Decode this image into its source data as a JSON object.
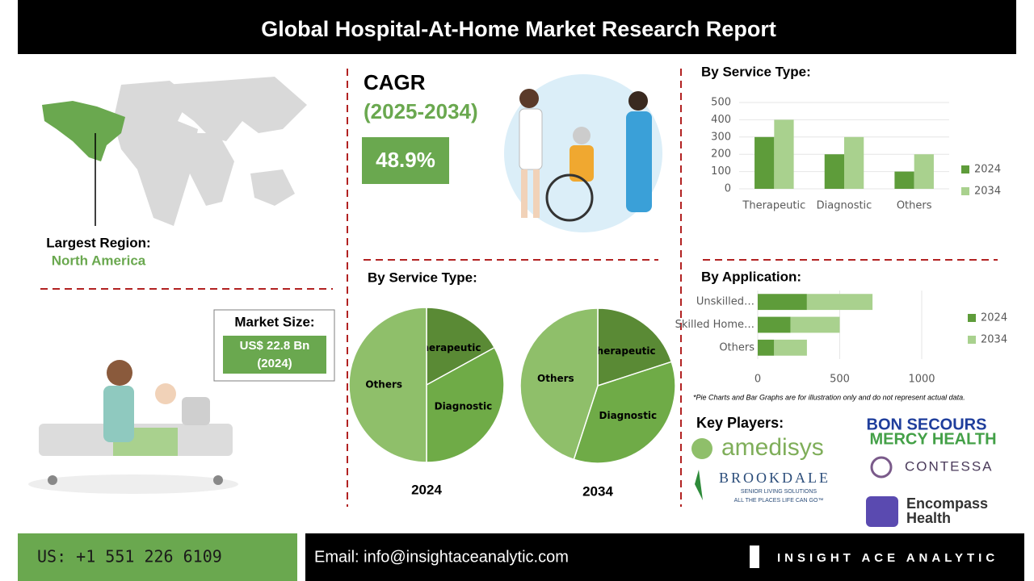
{
  "header": {
    "title": "Global Hospital-At-Home Market Research Report"
  },
  "region": {
    "label": "Largest Region:",
    "value": "North America"
  },
  "cagr": {
    "label": "CAGR",
    "period": "(2025-2034)",
    "value": "48.9%"
  },
  "market_size": {
    "label": "Market Size:",
    "value": "US$ 22.8 Bn",
    "year": "(2024)"
  },
  "pie_heading": "By Service Type:",
  "chart_data": [
    {
      "type": "bar",
      "title": "By Service Type:",
      "categories": [
        "Therapeutic",
        "Diagnostic",
        "Others"
      ],
      "series": [
        {
          "name": "2024",
          "color": "#5e9c3a",
          "values": [
            300,
            200,
            100
          ]
        },
        {
          "name": "2034",
          "color": "#a9d18e",
          "values": [
            400,
            300,
            200
          ]
        }
      ],
      "ylim": [
        0,
        500
      ],
      "yticks": [
        0,
        100,
        200,
        300,
        400,
        500
      ],
      "grid": true,
      "legend": "right"
    },
    {
      "type": "pie",
      "title": "2024",
      "categories": [
        "Therapeutic",
        "Diagnostic",
        "Others"
      ],
      "values": [
        17,
        33,
        50
      ],
      "colors": [
        "#5a8a35",
        "#6fab47",
        "#8fbf6a"
      ]
    },
    {
      "type": "pie",
      "title": "2034",
      "categories": [
        "Therapeutic",
        "Diagnostic",
        "Others"
      ],
      "values": [
        20,
        35,
        45
      ],
      "colors": [
        "#5a8a35",
        "#6fab47",
        "#8fbf6a"
      ]
    },
    {
      "type": "hbar",
      "title": "By Application:",
      "categories": [
        "Unskilled…",
        "Skilled Home…",
        "Others"
      ],
      "stacked": true,
      "series": [
        {
          "name": "2024",
          "color": "#5e9c3a",
          "values": [
            300,
            200,
            100
          ]
        },
        {
          "name": "2034",
          "color": "#a9d18e",
          "values": [
            400,
            300,
            200
          ]
        }
      ],
      "xlim": [
        0,
        1000
      ],
      "xticks": [
        0,
        500,
        1000
      ],
      "grid": true,
      "legend": "right"
    }
  ],
  "note": "*Pie Charts and Bar Graphs are for illustration only and do not represent actual data.",
  "key_players": {
    "title": "Key Players:",
    "amedisys": "amedisys",
    "brookdale": "BROOKDALE",
    "brookdale_sub": "SENIOR LIVING SOLUTIONS",
    "brookdale_tag": "ALL THE PLACES LIFE CAN GO™",
    "bon_secours": "BON SECOURS",
    "mercy": "MERCY HEALTH",
    "contessa": "CONTESSA",
    "encompass": "Encompass",
    "encompass_2": "Health"
  },
  "footer": {
    "phone": "US: +1 551 226 6109",
    "email": "Email: info@insightaceanalytic.com",
    "brand": "INSIGHT ACE ANALYTIC"
  }
}
